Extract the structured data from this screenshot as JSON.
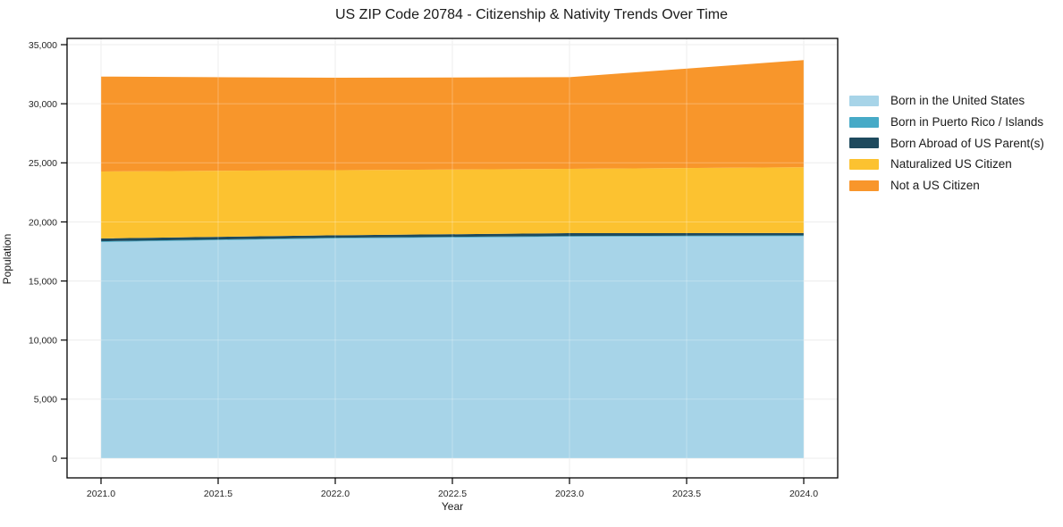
{
  "title": "US ZIP Code 20784 - Citizenship & Nativity Trends Over Time",
  "chart_data": {
    "type": "area",
    "stacked": true,
    "title": "US ZIP Code 20784 - Citizenship & Nativity Trends Over Time",
    "xlabel": "Year",
    "ylabel": "Population",
    "x": [
      2021,
      2022,
      2023,
      2024
    ],
    "series": [
      {
        "name": "Born in the United States",
        "color": "#a7d4e8",
        "values": [
          18300,
          18600,
          18750,
          18800
        ]
      },
      {
        "name": "Born in Puerto Rico / Islands",
        "color": "#46aac7",
        "values": [
          60,
          60,
          60,
          60
        ]
      },
      {
        "name": "Born Abroad of US Parent(s)",
        "color": "#1e4a5e",
        "values": [
          240,
          210,
          240,
          200
        ]
      },
      {
        "name": "Naturalized US Citizen",
        "color": "#fcc230",
        "values": [
          5670,
          5510,
          5440,
          5570
        ]
      },
      {
        "name": "Not a US Citizen",
        "color": "#f8962b",
        "values": [
          8030,
          7820,
          7760,
          9070
        ]
      }
    ],
    "xlim": [
      2020.855,
      2024.145
    ],
    "ylim": [
      -1660,
      35530
    ],
    "xticks": {
      "values": [
        2021.0,
        2021.5,
        2022.0,
        2022.5,
        2023.0,
        2023.5,
        2024.0
      ],
      "labels": [
        "2021.0",
        "2021.5",
        "2022.0",
        "2022.5",
        "2023.0",
        "2023.5",
        "2024.0"
      ]
    },
    "yticks": {
      "values": [
        0,
        5000,
        10000,
        15000,
        20000,
        25000,
        30000,
        35000
      ],
      "labels": [
        "0",
        "5,000",
        "10,000",
        "15,000",
        "20,000",
        "25,000",
        "30,000",
        "35,000"
      ]
    },
    "grid": true,
    "legend_position": "right",
    "frame_color": "#000000",
    "grid_color": "#e7e7e7"
  }
}
